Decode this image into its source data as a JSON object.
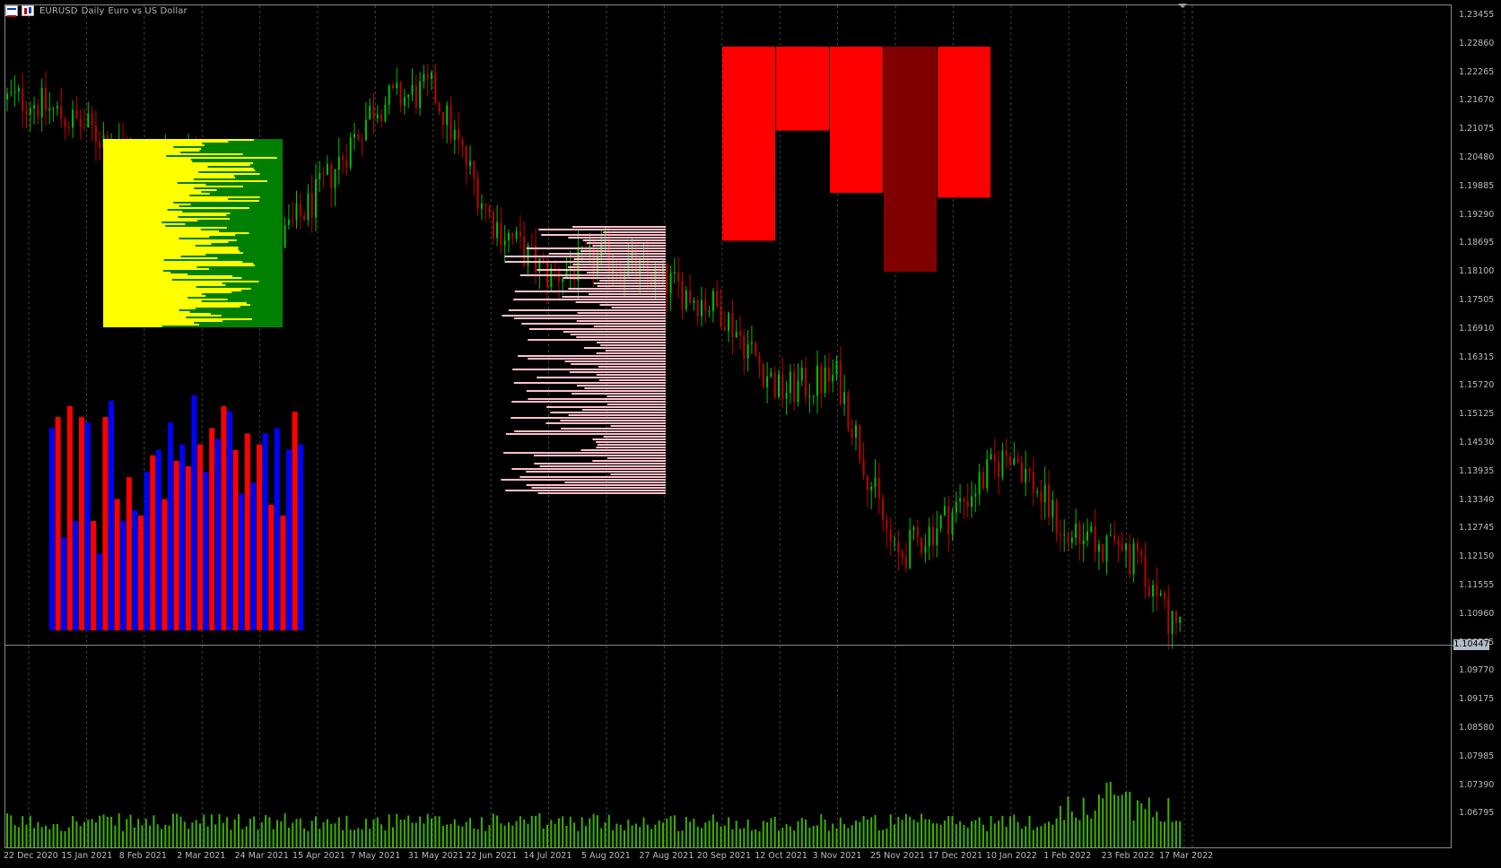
{
  "header": {
    "symbol": "EURUSD",
    "timeframe": "Daily",
    "description": "Euro vs US Dollar"
  },
  "colors": {
    "background": "#000000",
    "bull_candle": "#00c000",
    "bear_candle": "#c00000",
    "volume": "#3cb000",
    "grid": "#2e4a2e",
    "profile_yellow": "#ffff00",
    "profile_green": "#008000",
    "profile_pink": "#ffc0cb",
    "histogram_red": "#ff0000",
    "histogram_blue": "#0000ff",
    "block_red": "#ff0000",
    "block_dark_red": "#800000",
    "current_price_line": "#7d8a94"
  },
  "price_axis": {
    "labels": [
      "1.23455",
      "1.22860",
      "1.22265",
      "1.21670",
      "1.21075",
      "1.20480",
      "1.19885",
      "1.19290",
      "1.18695",
      "1.18100",
      "1.17505",
      "1.16910",
      "1.16315",
      "1.15720",
      "1.15125",
      "1.14530",
      "1.13935",
      "1.13340",
      "1.12745",
      "1.12150",
      "1.11555",
      "1.10960",
      "1.10365",
      "1.09770",
      "1.09175",
      "1.08580",
      "1.07985",
      "1.07390",
      "1.06795"
    ],
    "current_price": "1.10447"
  },
  "time_axis": {
    "labels": [
      "22 Dec 2020",
      "15 Jan 2021",
      "8 Feb 2021",
      "2 Mar 2021",
      "24 Mar 2021",
      "15 Apr 2021",
      "7 May 2021",
      "31 May 2021",
      "22 Jun 2021",
      "14 Jul 2021",
      "5 Aug 2021",
      "27 Aug 2021",
      "20 Sep 2021",
      "12 Oct 2021",
      "3 Nov 2021",
      "25 Nov 2021",
      "17 Dec 2021",
      "10 Jan 2022",
      "1 Feb 2022",
      "23 Feb 2022",
      "17 Mar 2022"
    ]
  },
  "chart_data": {
    "type": "candlestick",
    "symbol": "EURUSD",
    "timeframe": "Daily",
    "y_range": [
      1.065,
      1.237
    ],
    "trend_path": [
      [
        "22 Dec 2020",
        1.217
      ],
      [
        "15 Jan 2021",
        1.211
      ],
      [
        "8 Feb 2021",
        1.204
      ],
      [
        "2 Mar 2021",
        1.206
      ],
      [
        "24 Mar 2021",
        1.182
      ],
      [
        "15 Apr 2021",
        1.197
      ],
      [
        "7 May 2021",
        1.216
      ],
      [
        "31 May 2021",
        1.219
      ],
      [
        "22 Jun 2021",
        1.192
      ],
      [
        "14 Jul 2021",
        1.18
      ],
      [
        "5 Aug 2021",
        1.184
      ],
      [
        "27 Aug 2021",
        1.179
      ],
      [
        "20 Sep 2021",
        1.173
      ],
      [
        "12 Oct 2021",
        1.156
      ],
      [
        "3 Nov 2021",
        1.159
      ],
      [
        "25 Nov 2021",
        1.121
      ],
      [
        "17 Dec 2021",
        1.131
      ],
      [
        "10 Jan 2022",
        1.144
      ],
      [
        "1 Feb 2022",
        1.125
      ],
      [
        "23 Feb 2022",
        1.123
      ],
      [
        "17 Mar 2022",
        1.104
      ]
    ],
    "block_indicator": {
      "baseline": 1.228,
      "values": [
        1.1875,
        1.2105,
        1.1975,
        1.181,
        1.1965
      ],
      "colors": [
        "#ff0000",
        "#ff0000",
        "#ff0000",
        "#800000",
        "#ff0000"
      ]
    },
    "histogram_indicator": {
      "values": [
        37,
        39,
        17,
        41,
        20,
        39,
        38,
        20,
        14,
        39,
        42,
        24,
        20,
        28,
        22,
        21,
        29,
        32,
        33,
        24,
        38,
        31,
        34,
        30,
        43,
        34,
        29,
        37,
        35,
        41,
        40,
        33,
        25,
        36,
        27,
        34,
        36,
        23,
        37,
        21,
        33,
        40,
        34
      ]
    }
  }
}
